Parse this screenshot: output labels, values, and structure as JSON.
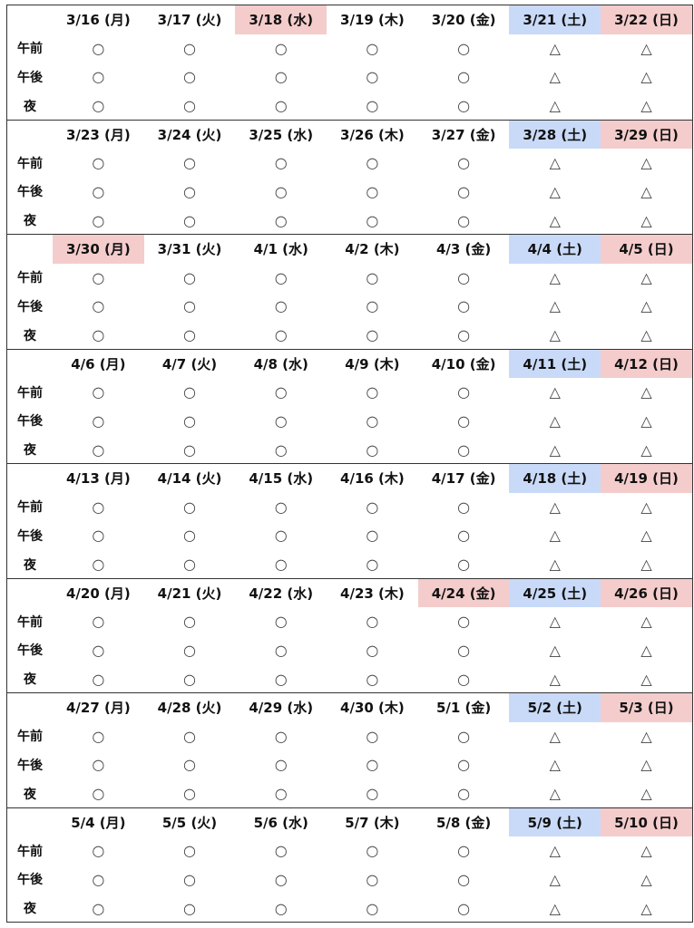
{
  "row_labels": [
    "午前",
    "午後",
    "夜"
  ],
  "marks": {
    "weekday": "○",
    "weekend": "△"
  },
  "colors": {
    "saturday": "#c9daf8",
    "holiday": "#f4cccc"
  },
  "weeks": [
    {
      "days": [
        {
          "label": "3/16 (月)",
          "hl": ""
        },
        {
          "label": "3/17 (火)",
          "hl": ""
        },
        {
          "label": "3/18 (水)",
          "hl": "hol"
        },
        {
          "label": "3/19 (木)",
          "hl": ""
        },
        {
          "label": "3/20 (金)",
          "hl": ""
        },
        {
          "label": "3/21 (土)",
          "hl": "sat"
        },
        {
          "label": "3/22 (日)",
          "hl": "hol"
        }
      ]
    },
    {
      "days": [
        {
          "label": "3/23 (月)",
          "hl": ""
        },
        {
          "label": "3/24 (火)",
          "hl": ""
        },
        {
          "label": "3/25 (水)",
          "hl": ""
        },
        {
          "label": "3/26 (木)",
          "hl": ""
        },
        {
          "label": "3/27 (金)",
          "hl": ""
        },
        {
          "label": "3/28 (土)",
          "hl": "sat"
        },
        {
          "label": "3/29 (日)",
          "hl": "hol"
        }
      ]
    },
    {
      "days": [
        {
          "label": "3/30 (月)",
          "hl": "hol"
        },
        {
          "label": "3/31 (火)",
          "hl": ""
        },
        {
          "label": "4/1 (水)",
          "hl": ""
        },
        {
          "label": "4/2 (木)",
          "hl": ""
        },
        {
          "label": "4/3 (金)",
          "hl": ""
        },
        {
          "label": "4/4 (土)",
          "hl": "sat"
        },
        {
          "label": "4/5 (日)",
          "hl": "hol"
        }
      ]
    },
    {
      "days": [
        {
          "label": "4/6 (月)",
          "hl": ""
        },
        {
          "label": "4/7 (火)",
          "hl": ""
        },
        {
          "label": "4/8 (水)",
          "hl": ""
        },
        {
          "label": "4/9 (木)",
          "hl": ""
        },
        {
          "label": "4/10 (金)",
          "hl": ""
        },
        {
          "label": "4/11 (土)",
          "hl": "sat"
        },
        {
          "label": "4/12 (日)",
          "hl": "hol"
        }
      ]
    },
    {
      "days": [
        {
          "label": "4/13 (月)",
          "hl": ""
        },
        {
          "label": "4/14 (火)",
          "hl": ""
        },
        {
          "label": "4/15 (水)",
          "hl": ""
        },
        {
          "label": "4/16 (木)",
          "hl": ""
        },
        {
          "label": "4/17 (金)",
          "hl": ""
        },
        {
          "label": "4/18 (土)",
          "hl": "sat"
        },
        {
          "label": "4/19 (日)",
          "hl": "hol"
        }
      ]
    },
    {
      "days": [
        {
          "label": "4/20 (月)",
          "hl": ""
        },
        {
          "label": "4/21 (火)",
          "hl": ""
        },
        {
          "label": "4/22 (水)",
          "hl": ""
        },
        {
          "label": "4/23 (木)",
          "hl": ""
        },
        {
          "label": "4/24 (金)",
          "hl": "hol"
        },
        {
          "label": "4/25 (土)",
          "hl": "sat"
        },
        {
          "label": "4/26 (日)",
          "hl": "hol"
        }
      ]
    },
    {
      "days": [
        {
          "label": "4/27 (月)",
          "hl": ""
        },
        {
          "label": "4/28 (火)",
          "hl": ""
        },
        {
          "label": "4/29 (水)",
          "hl": ""
        },
        {
          "label": "4/30 (木)",
          "hl": ""
        },
        {
          "label": "5/1 (金)",
          "hl": ""
        },
        {
          "label": "5/2 (土)",
          "hl": "sat"
        },
        {
          "label": "5/3 (日)",
          "hl": "hol"
        }
      ]
    },
    {
      "days": [
        {
          "label": "5/4 (月)",
          "hl": ""
        },
        {
          "label": "5/5 (火)",
          "hl": ""
        },
        {
          "label": "5/6 (水)",
          "hl": ""
        },
        {
          "label": "5/7 (木)",
          "hl": ""
        },
        {
          "label": "5/8 (金)",
          "hl": ""
        },
        {
          "label": "5/9 (土)",
          "hl": "sat"
        },
        {
          "label": "5/10 (日)",
          "hl": "hol"
        }
      ]
    }
  ]
}
